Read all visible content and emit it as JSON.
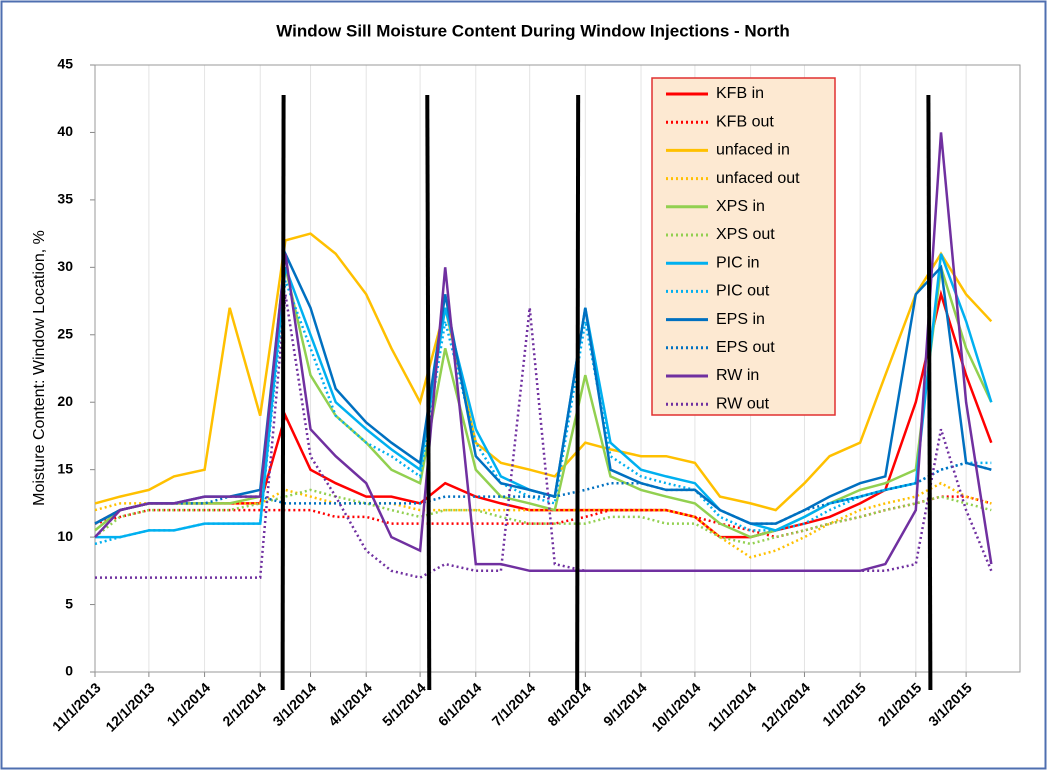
{
  "chart_data": {
    "type": "line",
    "title": "Window Sill Moisture Content During Window Injections - North",
    "y_label": "Moisture Content: Window Location, %",
    "x": [
      "11/1/2013",
      "11/15/2013",
      "12/1/2013",
      "12/15/2013",
      "1/1/2014",
      "1/15/2014",
      "2/1/2014",
      "2/15/2014",
      "3/1/2014",
      "3/15/2014",
      "4/1/2014",
      "4/15/2014",
      "5/1/2014",
      "5/15/2014",
      "6/1/2014",
      "6/15/2014",
      "7/1/2014",
      "7/15/2014",
      "8/1/2014",
      "8/15/2014",
      "9/1/2014",
      "9/15/2014",
      "10/1/2014",
      "10/15/2014",
      "11/1/2014",
      "11/15/2014",
      "12/1/2014",
      "12/15/2014",
      "1/1/2015",
      "1/15/2015",
      "2/1/2015",
      "2/15/2015",
      "3/1/2015",
      "3/15/2015"
    ],
    "xlim": [
      "11/1/2013",
      "3/31/2015"
    ],
    "xticks": [
      "11/1/2013",
      "12/1/2013",
      "1/1/2014",
      "2/1/2014",
      "3/1/2014",
      "4/1/2014",
      "5/1/2014",
      "6/1/2014",
      "7/1/2014",
      "8/1/2014",
      "9/1/2014",
      "10/1/2014",
      "11/1/2014",
      "12/1/2014",
      "1/1/2015",
      "2/1/2015",
      "3/1/2015"
    ],
    "ylim": [
      0,
      45
    ],
    "yticks": [
      0,
      5,
      10,
      15,
      20,
      25,
      30,
      35,
      40,
      45
    ],
    "grid": "vertical",
    "legend": "upper-center",
    "injection_dates": [
      "2/14/2014",
      "5/5/2014",
      "7/28/2014",
      "2/8/2015"
    ],
    "series": [
      {
        "name": "KFB in",
        "color": "#ff0000",
        "style": "solid",
        "values": [
          11,
          12,
          12.5,
          12.5,
          12.5,
          12.5,
          12.5,
          19,
          15,
          14,
          13,
          13,
          12.5,
          14,
          13,
          12.5,
          12,
          12,
          12,
          12,
          12,
          12,
          11.5,
          10,
          10,
          10.5,
          11,
          11.5,
          12.5,
          13.5,
          20,
          28,
          22,
          17
        ]
      },
      {
        "name": "KFB out",
        "color": "#ff0000",
        "style": "dotted",
        "values": [
          11,
          11.5,
          12,
          12,
          12,
          12,
          12,
          12,
          12,
          11.5,
          11.5,
          11,
          11,
          11,
          11,
          11,
          11,
          11,
          11.5,
          12,
          12,
          12,
          11.5,
          11,
          10.5,
          10,
          10.5,
          11,
          11.5,
          12,
          12.5,
          13,
          13,
          12.5
        ]
      },
      {
        "name": "unfaced in",
        "color": "#ffc000",
        "style": "solid",
        "values": [
          12.5,
          13,
          13.5,
          14.5,
          15,
          27,
          19,
          32,
          32.5,
          31,
          28,
          24,
          20,
          27,
          17,
          15.5,
          15,
          14.5,
          17,
          16.5,
          16,
          16,
          15.5,
          13,
          12.5,
          12,
          14,
          16,
          17,
          22,
          28,
          31,
          28,
          26
        ]
      },
      {
        "name": "unfaced out",
        "color": "#ffc000",
        "style": "dotted",
        "values": [
          12,
          12.5,
          12.5,
          12.5,
          12.5,
          12.5,
          12.5,
          13.5,
          13,
          12.5,
          12.5,
          12.5,
          12,
          12,
          12,
          12,
          12,
          12,
          12,
          12,
          12,
          12,
          11.5,
          10,
          8.5,
          9,
          10,
          11,
          12,
          12.5,
          13,
          14,
          13,
          12.5
        ]
      },
      {
        "name": "XPS in",
        "color": "#92d050",
        "style": "solid",
        "values": [
          10.5,
          12,
          12.5,
          12.5,
          12.5,
          12.5,
          13,
          30,
          22,
          19,
          17,
          15,
          14,
          24,
          15,
          13,
          12.5,
          12,
          22,
          14.5,
          13.5,
          13,
          12.5,
          11,
          10,
          10.5,
          11.5,
          12.5,
          13.5,
          14,
          15,
          30,
          24,
          20
        ]
      },
      {
        "name": "XPS out",
        "color": "#92d050",
        "style": "dotted",
        "values": [
          10,
          11.5,
          12,
          12,
          12,
          12,
          12.5,
          13,
          13.5,
          13,
          12.5,
          12,
          11.5,
          12,
          12,
          11.5,
          11,
          11,
          11,
          11.5,
          11.5,
          11,
          11,
          10,
          9.5,
          10,
          10.5,
          11,
          11.5,
          12,
          12.5,
          13,
          12.5,
          12
        ]
      },
      {
        "name": "PIC in",
        "color": "#00b0f0",
        "style": "solid",
        "values": [
          10,
          10,
          10.5,
          10.5,
          11,
          11,
          11,
          30,
          25,
          20,
          18,
          16.5,
          15,
          27,
          18,
          14.5,
          13.5,
          13,
          27,
          17,
          15,
          14.5,
          14,
          12,
          11,
          10.5,
          11.5,
          12.5,
          13,
          13.5,
          14,
          31,
          26,
          20
        ]
      },
      {
        "name": "PIC out",
        "color": "#00b0f0",
        "style": "dotted",
        "values": [
          9.5,
          10,
          10.5,
          10.5,
          11,
          11,
          11,
          29,
          24,
          19,
          17,
          16,
          14.5,
          26,
          17,
          14,
          13,
          12.5,
          26,
          16,
          14.5,
          14,
          13.5,
          11.5,
          10.5,
          10.5,
          11,
          12,
          13,
          13.5,
          14,
          15,
          15.5,
          15.5
        ]
      },
      {
        "name": "EPS in",
        "color": "#0070c0",
        "style": "solid",
        "values": [
          11,
          12,
          12.5,
          12.5,
          13,
          13,
          13.5,
          31,
          27,
          21,
          18.5,
          17,
          15.5,
          28,
          16,
          14,
          13.5,
          13,
          27,
          15,
          14,
          13.5,
          13.5,
          12,
          11,
          11,
          12,
          13,
          14,
          14.5,
          28,
          30,
          15.5,
          15
        ]
      },
      {
        "name": "EPS out",
        "color": "#0070c0",
        "style": "dotted",
        "values": [
          11,
          12,
          12.5,
          12.5,
          12.5,
          13,
          13,
          12.5,
          12.5,
          12.5,
          12.5,
          12.5,
          12.5,
          13,
          13,
          13,
          13,
          13,
          13.5,
          14,
          14,
          13.5,
          13.5,
          12,
          11,
          11,
          12,
          12.5,
          13,
          13.5,
          14,
          15,
          15.5,
          15
        ]
      },
      {
        "name": "RW in",
        "color": "#7030a0",
        "style": "solid",
        "values": [
          10,
          12,
          12.5,
          12.5,
          13,
          13,
          13,
          31,
          18,
          16,
          14,
          10,
          9,
          30,
          8,
          8,
          7.5,
          7.5,
          7.5,
          7.5,
          7.5,
          7.5,
          7.5,
          7.5,
          7.5,
          7.5,
          7.5,
          7.5,
          7.5,
          8,
          12,
          40,
          20,
          8
        ]
      },
      {
        "name": "RW out",
        "color": "#7030a0",
        "style": "dotted",
        "values": [
          7,
          7,
          7,
          7,
          7,
          7,
          7,
          28,
          16,
          13,
          9,
          7.5,
          7,
          8,
          7.5,
          7.5,
          27,
          8,
          7.5,
          7.5,
          7.5,
          7.5,
          7.5,
          7.5,
          7.5,
          7.5,
          7.5,
          7.5,
          7.5,
          7.5,
          8,
          18,
          12,
          7.5
        ]
      }
    ]
  }
}
